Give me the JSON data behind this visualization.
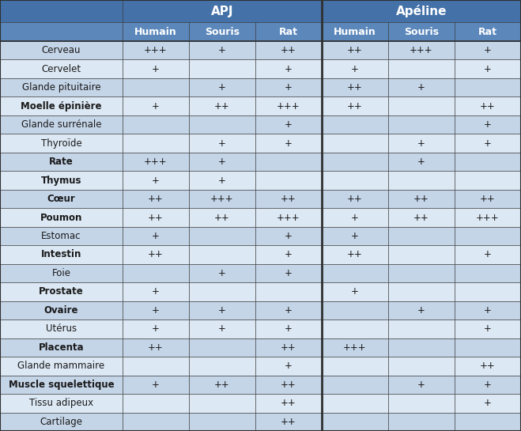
{
  "header_row1_labels": [
    "APJ",
    "Apéline"
  ],
  "header_row2": [
    "Humain",
    "Souris",
    "Rat",
    "Humain",
    "Souris",
    "Rat"
  ],
  "rows": [
    [
      "Cerveau",
      "+++",
      "+",
      "++",
      "++",
      "+++",
      "+"
    ],
    [
      "Cervelet",
      "+",
      "",
      "+",
      "+",
      "",
      "+"
    ],
    [
      "Glande pituitaire",
      "",
      "+",
      "+",
      "++",
      "+",
      ""
    ],
    [
      "Moelle épinière",
      "+",
      "++",
      "+++",
      "++",
      "",
      "++"
    ],
    [
      "Glande surrénale",
      "",
      "",
      "+",
      "",
      "",
      "+"
    ],
    [
      "Thyroïde",
      "",
      "+",
      "+",
      "",
      "+",
      "+"
    ],
    [
      "Rate",
      "+++",
      "+",
      "",
      "",
      "+",
      ""
    ],
    [
      "Thymus",
      "+",
      "+",
      "",
      "",
      "",
      ""
    ],
    [
      "Cœur",
      "++",
      "+++",
      "++",
      "++",
      "++",
      "++"
    ],
    [
      "Poumon",
      "++",
      "++",
      "+++",
      "+",
      "++",
      "+++"
    ],
    [
      "Estomac",
      "+",
      "",
      "+",
      "+",
      "",
      ""
    ],
    [
      "Intestin",
      "++",
      "",
      "+",
      "++",
      "",
      "+"
    ],
    [
      "Foie",
      "",
      "+",
      "+",
      "",
      "",
      ""
    ],
    [
      "Prostate",
      "+",
      "",
      "",
      "+",
      "",
      ""
    ],
    [
      "Ovaire",
      "+",
      "+",
      "+",
      "",
      "+",
      "+"
    ],
    [
      "Utérus",
      "+",
      "+",
      "+",
      "",
      "",
      "+"
    ],
    [
      "Placenta",
      "++",
      "",
      "++",
      "+++",
      "",
      ""
    ],
    [
      "Glande mammaire",
      "",
      "",
      "+",
      "",
      "",
      "++"
    ],
    [
      "Muscle squelettique",
      "+",
      "++",
      "++",
      "",
      "+",
      "+"
    ],
    [
      "Tissu adipeux",
      "",
      "",
      "++",
      "",
      "",
      "+"
    ],
    [
      "Cartilage",
      "",
      "",
      "++",
      "",
      "",
      ""
    ]
  ],
  "row_bold": [
    false,
    false,
    false,
    true,
    false,
    false,
    true,
    true,
    true,
    true,
    false,
    true,
    false,
    true,
    true,
    false,
    true,
    false,
    true,
    false,
    false
  ],
  "header1_color": "#4472A8",
  "header2_color": "#5B87BB",
  "label_col_color": "#4472A8",
  "row_color_A": "#C5D5E8",
  "row_color_B": "#DCE8F4",
  "border_color": "#2F2F2F",
  "text_color_header": "#FFFFFF",
  "text_color_data": "#1A1A1A",
  "font_size_header1": 11,
  "font_size_header2": 9,
  "font_size_label": 8.5,
  "font_size_data": 8.5
}
